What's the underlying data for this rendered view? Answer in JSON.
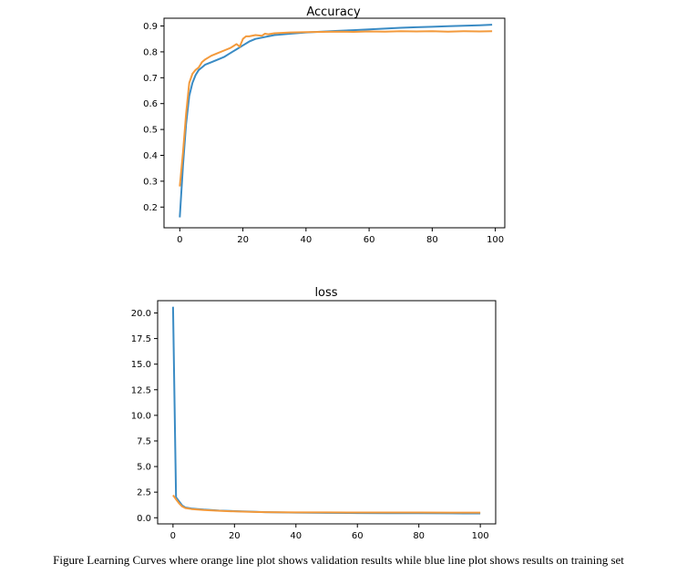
{
  "colors": {
    "training": "#3a8bc4",
    "validation": "#f39a3c",
    "axis": "#000000"
  },
  "chart_data": [
    {
      "type": "line",
      "title": "Accuracy",
      "xlabel": "",
      "ylabel": "",
      "xlim": [
        -5,
        103
      ],
      "ylim": [
        0.12,
        0.93
      ],
      "xticks": [
        0,
        20,
        40,
        60,
        80,
        100
      ],
      "xtick_labels": [
        "0",
        "20",
        "40",
        "60",
        "80",
        "100"
      ],
      "yticks": [
        0.2,
        0.3,
        0.4,
        0.5,
        0.6,
        0.7,
        0.8,
        0.9
      ],
      "ytick_labels": [
        "0.2",
        "0.3",
        "0.4",
        "0.5",
        "0.6",
        "0.7",
        "0.8",
        "0.9"
      ],
      "grid": false,
      "series": [
        {
          "color": "#3a8bc4",
          "points": [
            [
              0,
              0.16
            ],
            [
              1,
              0.36
            ],
            [
              2,
              0.52
            ],
            [
              3,
              0.63
            ],
            [
              4,
              0.68
            ],
            [
              5,
              0.71
            ],
            [
              6,
              0.73
            ],
            [
              7,
              0.74
            ],
            [
              8,
              0.75
            ],
            [
              10,
              0.76
            ],
            [
              12,
              0.77
            ],
            [
              14,
              0.78
            ],
            [
              16,
              0.795
            ],
            [
              18,
              0.81
            ],
            [
              20,
              0.825
            ],
            [
              22,
              0.84
            ],
            [
              24,
              0.85
            ],
            [
              26,
              0.855
            ],
            [
              28,
              0.86
            ],
            [
              30,
              0.865
            ],
            [
              35,
              0.87
            ],
            [
              40,
              0.875
            ],
            [
              45,
              0.878
            ],
            [
              50,
              0.881
            ],
            [
              55,
              0.884
            ],
            [
              60,
              0.887
            ],
            [
              65,
              0.89
            ],
            [
              70,
              0.893
            ],
            [
              75,
              0.895
            ],
            [
              80,
              0.897
            ],
            [
              85,
              0.899
            ],
            [
              90,
              0.901
            ],
            [
              95,
              0.903
            ],
            [
              99,
              0.905
            ]
          ]
        },
        {
          "color": "#f39a3c",
          "points": [
            [
              0,
              0.28
            ],
            [
              1,
              0.41
            ],
            [
              2,
              0.56
            ],
            [
              3,
              0.68
            ],
            [
              4,
              0.715
            ],
            [
              5,
              0.73
            ],
            [
              6,
              0.74
            ],
            [
              7,
              0.76
            ],
            [
              8,
              0.77
            ],
            [
              10,
              0.785
            ],
            [
              12,
              0.795
            ],
            [
              14,
              0.805
            ],
            [
              16,
              0.815
            ],
            [
              18,
              0.83
            ],
            [
              19,
              0.82
            ],
            [
              20,
              0.85
            ],
            [
              21,
              0.86
            ],
            [
              22,
              0.86
            ],
            [
              24,
              0.865
            ],
            [
              26,
              0.862
            ],
            [
              27,
              0.87
            ],
            [
              28,
              0.868
            ],
            [
              30,
              0.872
            ],
            [
              35,
              0.875
            ],
            [
              40,
              0.876
            ],
            [
              45,
              0.877
            ],
            [
              50,
              0.878
            ],
            [
              55,
              0.877
            ],
            [
              60,
              0.879
            ],
            [
              65,
              0.878
            ],
            [
              70,
              0.88
            ],
            [
              75,
              0.879
            ],
            [
              80,
              0.88
            ],
            [
              85,
              0.878
            ],
            [
              90,
              0.88
            ],
            [
              95,
              0.879
            ],
            [
              99,
              0.88
            ]
          ]
        }
      ]
    },
    {
      "type": "line",
      "title": "loss",
      "xlabel": "",
      "ylabel": "",
      "xlim": [
        -5,
        105
      ],
      "ylim": [
        -0.6,
        21.2
      ],
      "xticks": [
        0,
        20,
        40,
        60,
        80,
        100
      ],
      "xtick_labels": [
        "0",
        "20",
        "40",
        "60",
        "80",
        "100"
      ],
      "yticks": [
        0,
        2.5,
        5,
        7.5,
        10,
        12.5,
        15,
        17.5,
        20
      ],
      "ytick_labels": [
        "0.0",
        "2.5",
        "5.0",
        "7.5",
        "10.0",
        "12.5",
        "15.0",
        "17.5",
        "20.0"
      ],
      "grid": false,
      "series": [
        {
          "color": "#3a8bc4",
          "points": [
            [
              0,
              20.6
            ],
            [
              1,
              2.0
            ],
            [
              2,
              1.6
            ],
            [
              3,
              1.2
            ],
            [
              4,
              1.0
            ],
            [
              6,
              0.9
            ],
            [
              8,
              0.85
            ],
            [
              10,
              0.8
            ],
            [
              15,
              0.7
            ],
            [
              20,
              0.65
            ],
            [
              25,
              0.6
            ],
            [
              30,
              0.55
            ],
            [
              40,
              0.5
            ],
            [
              50,
              0.48
            ],
            [
              60,
              0.46
            ],
            [
              70,
              0.45
            ],
            [
              80,
              0.44
            ],
            [
              90,
              0.43
            ],
            [
              100,
              0.42
            ]
          ]
        },
        {
          "color": "#f39a3c",
          "points": [
            [
              0,
              2.2
            ],
            [
              1,
              1.8
            ],
            [
              2,
              1.4
            ],
            [
              3,
              1.1
            ],
            [
              4,
              0.95
            ],
            [
              6,
              0.85
            ],
            [
              8,
              0.8
            ],
            [
              10,
              0.75
            ],
            [
              15,
              0.68
            ],
            [
              20,
              0.62
            ],
            [
              25,
              0.58
            ],
            [
              30,
              0.55
            ],
            [
              40,
              0.52
            ],
            [
              50,
              0.52
            ],
            [
              60,
              0.51
            ],
            [
              70,
              0.51
            ],
            [
              80,
              0.51
            ],
            [
              90,
              0.5
            ],
            [
              100,
              0.5
            ]
          ]
        }
      ]
    }
  ],
  "caption": "Figure Learning Curves where orange line plot shows validation results while blue line plot shows results on training set"
}
